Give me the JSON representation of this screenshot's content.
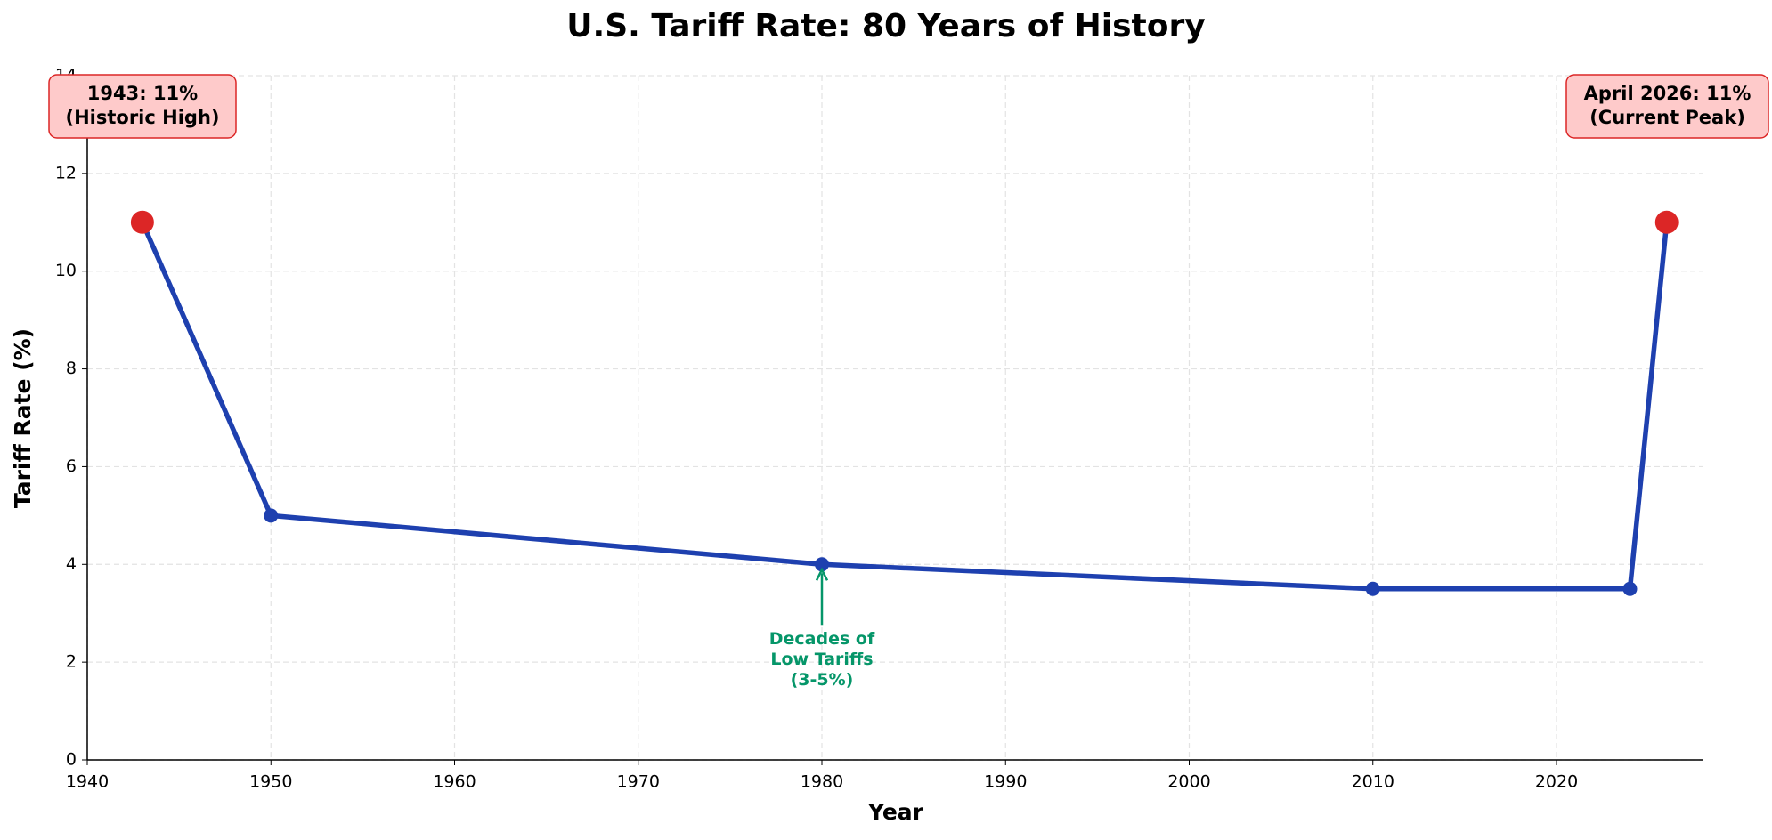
{
  "chart_data": {
    "type": "line",
    "title": "U.S. Tariff Rate: 80 Years of History",
    "x_label": "Year",
    "y_label": "Tariff Rate (%)",
    "x": [
      1943,
      1950,
      1980,
      2010,
      2024,
      2026
    ],
    "values": [
      11,
      5,
      4,
      3.5,
      3.5,
      11
    ],
    "color": "#1e40af",
    "highlight_color": "#dc2626",
    "xlim": [
      1940,
      2028
    ],
    "xticks": [
      1940,
      1950,
      1960,
      1970,
      1980,
      1990,
      2000,
      2010,
      2020
    ],
    "ylim": [
      0,
      14
    ],
    "yticks": [
      0,
      2,
      4,
      6,
      8,
      10,
      12,
      14
    ],
    "grid": true,
    "annotations": [
      {
        "lines": [
          "1943: 11%",
          "(Historic High)"
        ]
      },
      {
        "lines": [
          "April 2026: 11%",
          "(Current Peak)"
        ]
      },
      {
        "lines": [
          "Decades of",
          "Low Tariffs",
          "(3-5%)"
        ],
        "color": "#059669"
      }
    ]
  }
}
